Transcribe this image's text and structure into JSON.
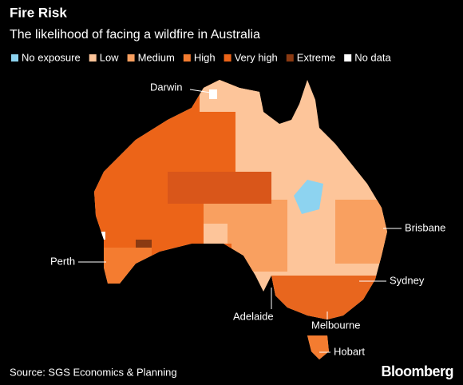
{
  "header": {
    "title": "Fire Risk",
    "subtitle": "The likelihood of facing a wildfire in Australia"
  },
  "legend": [
    {
      "label": "No exposure",
      "color": "#8dd3f0"
    },
    {
      "label": "Low",
      "color": "#fdc59a"
    },
    {
      "label": "Medium",
      "color": "#f9a060"
    },
    {
      "label": "High",
      "color": "#f47c30"
    },
    {
      "label": "Very high",
      "color": "#ec6418"
    },
    {
      "label": "Extreme",
      "color": "#8b3a12"
    },
    {
      "label": "No data",
      "color": "#ffffff"
    }
  ],
  "cities": [
    {
      "label": "Darwin"
    },
    {
      "label": "Brisbane"
    },
    {
      "label": "Perth"
    },
    {
      "label": "Sydney"
    },
    {
      "label": "Adelaide"
    },
    {
      "label": "Melbourne"
    },
    {
      "label": "Hobart"
    }
  ],
  "footer": {
    "source": "Source: SGS Economics & Planning",
    "brand": "Bloomberg"
  }
}
